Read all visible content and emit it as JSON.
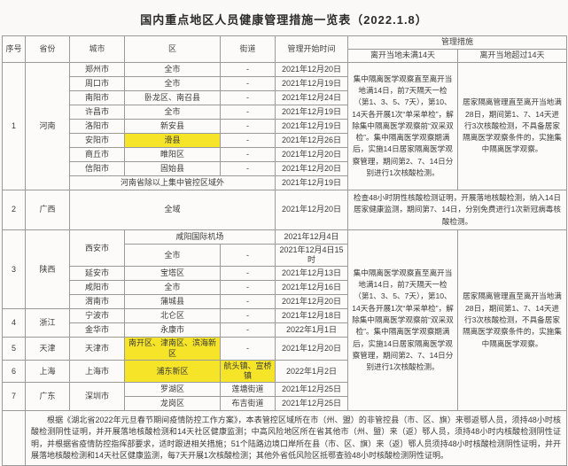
{
  "title": "国内重点地区人员健康管理措施一览表（2022.1.8）",
  "colors": {
    "highlight": "#f5e427",
    "border": "#9a9a9a",
    "text": "#3b3b3b"
  },
  "table": {
    "headers": {
      "seq": "序号",
      "province": "省份",
      "city": "城市",
      "district": "区",
      "street": "街道",
      "start_time": "管理开始时间",
      "measures": "管理措施",
      "under14_label": "离开当地未满14天",
      "over14_label": "离开当地超过14天"
    },
    "rows": [
      {
        "seq": "1",
        "province": "河南",
        "city": "郑州市",
        "district": "全市",
        "street": "-",
        "date": "2021年12月20日"
      },
      {
        "city": "周口市",
        "district": "全市",
        "street": "-",
        "date": "2021年12月19日"
      },
      {
        "city": "南阳市",
        "district": "卧龙区、南召县",
        "street": "-",
        "date": "2021年12月24日"
      },
      {
        "city": "许昌市",
        "district": "全市",
        "street": "-",
        "date": "2021年12月19日"
      },
      {
        "city": "洛阳市",
        "district": "新安县",
        "street": "-",
        "date": "2021年12月19日"
      },
      {
        "city": "安阳市",
        "district": "滑县",
        "street": "-",
        "date": "2021年12月26日"
      },
      {
        "city": "商丘市",
        "district": "睢阳区",
        "street": "-",
        "date": "2021年12月20日"
      },
      {
        "city": "信阳市",
        "district": "固始县",
        "street": "-",
        "date": "2021年12月20日"
      },
      {
        "region": "河南省除以上集中管控区域外",
        "date": "2021年12月19日"
      },
      {
        "seq": "2",
        "province": "广西",
        "region": "全域",
        "date": "2021年12月20日"
      },
      {
        "seq": "3",
        "province": "陕西",
        "city": "西安市",
        "district": "咸阳国际机场",
        "date": "2021年12月4日"
      },
      {
        "district": "全市",
        "street": "-",
        "date": "2021年12月4日15时"
      },
      {
        "city": "延安市",
        "district": "宝塔区",
        "street": "-",
        "date": "2021年12月13日"
      },
      {
        "city": "咸阳市",
        "district": "全市",
        "street": "-",
        "date": "2021年12月16日"
      },
      {
        "city": "渭南市",
        "district": "蒲城县",
        "street": "-",
        "date": "2021年12月20日"
      },
      {
        "seq": "4",
        "province": "浙江",
        "city": "宁波市",
        "district": "北仑区",
        "street": "-",
        "date": "2021年12月18日"
      },
      {
        "city": "金华市",
        "district": "永康市",
        "street": "-",
        "date": "2022年1月1日"
      },
      {
        "seq": "5",
        "province": "天津",
        "city": "天津市",
        "district": "南开区、津南区、滨海新区",
        "street": "-",
        "date": "2021年12月20日"
      },
      {
        "seq": "6",
        "province": "上海",
        "city": "上海市",
        "district": "浦东新区",
        "street": "航头镇、宣桥镇",
        "date": "2022年1月2日"
      },
      {
        "seq": "7",
        "province": "广东",
        "city": "深圳市",
        "district": "罗湖区",
        "street": "莲塘街道",
        "date": "2021年12月25日"
      },
      {
        "district": "龙岗区",
        "street": "布吉街道",
        "date": "2021年12月25日"
      }
    ],
    "measures": {
      "under14": "集中隔离医学观察直至离开当地满14日，前7天隔天一检（第1、3、5、7天），第10、14天各开展1次“单采单检”，解除集中隔离医学观察前“双采双检”。集中隔离医学观察期满后，实施14日居家隔离医学观察管理，期间第2、7、14日分别进行1次核酸检测。",
      "over14": "居家隔离管理直至离开当地满28日，期间第1、7、14天进行3次核酸检测，不具备居家隔离医学观察条件的，实施集中隔离医学观察。",
      "guangxi": "检查48小时阴性核酸检测证明，开展落地核酸检测，纳入14日居家健康监测，期间第7、14日，分别免费进行1次新冠病毒核酸检测。"
    }
  },
  "footer": {
    "note": "根据《湖北省2022年元旦春节期间疫情防控工作方案》，本表管控区域所在市（州、盟）的非管控县（市、区、旗）来鄂返鄂人员，须持48小时核酸检测阴性证明，并开展落地核酸检测和14天社区健康监测；中高风险地区所在省其他市（州、盟）来（返）鄂人员，须持48小时内核酸检测阴性证明，并根据省疫情防控指挥部要求，适时跟进相关措施；51个陆路边境口岸所在县（市、区、旗）来（返）鄂人员须持48小时核酸检测阴性证明，并开展落地核酸检测和14天社区健康监测，每7天开展1次核酸检测；其他外省低风险区抵鄂查验48小时核酸检测阴性证明。"
  }
}
